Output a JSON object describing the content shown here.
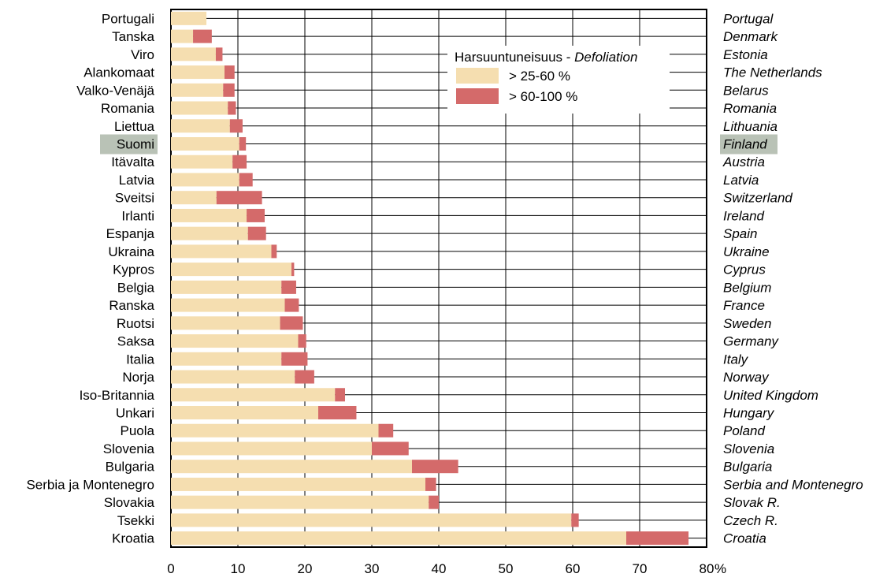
{
  "chart_data": {
    "type": "bar",
    "stacked": true,
    "orientation": "horizontal",
    "categories": [
      "Portugali",
      "Tanska",
      "Viro",
      "Alankomaat",
      "Valko-Venäjä",
      "Romania",
      "Liettua",
      "Suomi",
      "Itävalta",
      "Latvia",
      "Sveitsi",
      "Irlanti",
      "Espanja",
      "Ukraina",
      "Kypros",
      "Belgia",
      "Ranska",
      "Ruotsi",
      "Saksa",
      "Italia",
      "Norja",
      "Iso-Britannia",
      "Unkari",
      "Puola",
      "Slovenia",
      "Bulgaria",
      "Serbia ja Montenegro",
      "Slovakia",
      "Tsekki",
      "Kroatia"
    ],
    "categories_en": [
      "Portugal",
      "Denmark",
      "Estonia",
      "The Netherlands",
      "Belarus",
      "Romania",
      "Lithuania",
      "Finland",
      "Austria",
      "Latvia",
      "Switzerland",
      "Ireland",
      "Spain",
      "Ukraine",
      "Cyprus",
      "Belgium",
      "France",
      "Sweden",
      "Germany",
      "Italy",
      "Norway",
      "United Kingdom",
      "Hungary",
      "Poland",
      "Slovenia",
      "Bulgaria",
      "Serbia and Montenegro",
      "Slovak R.",
      "Czech R.",
      "Croatia"
    ],
    "highlight": "Suomi",
    "series": [
      {
        "name": "> 25-60 %",
        "color": "#f5deb0",
        "values": [
          5.3,
          3.3,
          6.7,
          8.0,
          7.8,
          8.5,
          8.8,
          10.2,
          9.2,
          10.2,
          6.8,
          11.3,
          11.5,
          15.0,
          18.0,
          16.5,
          17.0,
          16.3,
          19.0,
          16.5,
          18.5,
          24.5,
          22.0,
          31.0,
          30.0,
          36.0,
          38.0,
          38.5,
          59.8,
          68.0
        ]
      },
      {
        "name": "> 60-100 %",
        "color": "#d46a6a",
        "values": [
          0,
          2.8,
          1.0,
          1.5,
          1.7,
          1.2,
          1.9,
          1.0,
          2.1,
          2.0,
          6.8,
          2.7,
          2.7,
          0.8,
          0.4,
          2.2,
          2.1,
          3.4,
          1.2,
          3.9,
          2.9,
          1.5,
          5.7,
          2.2,
          5.5,
          6.9,
          1.6,
          1.5,
          1.1,
          9.3
        ]
      }
    ],
    "legend_title": "Harsuuntuneisuus - ",
    "legend_title_en": "Defoliation",
    "legend_position": "top-right",
    "xlim": [
      0,
      80
    ],
    "xticks": [
      0,
      10,
      20,
      30,
      40,
      50,
      60,
      70,
      80
    ],
    "x_unit": "%",
    "grid": true
  }
}
